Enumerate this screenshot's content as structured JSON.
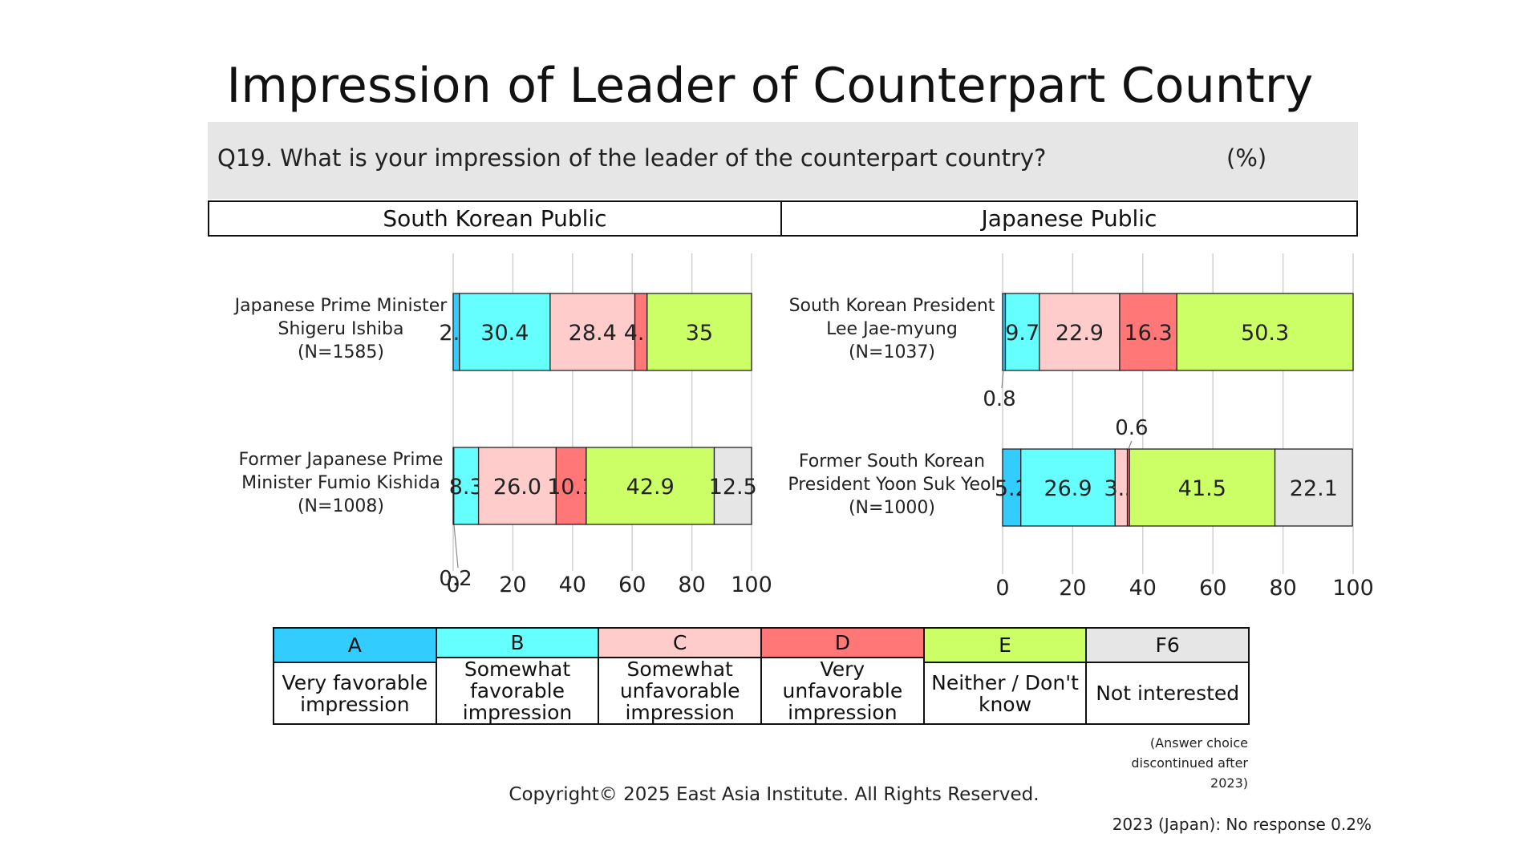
{
  "title": "Impression of Leader of Counterpart Country",
  "question": {
    "text": "Q19. What is your impression of the leader of the counterpart country?",
    "unit": "(%)"
  },
  "publics": {
    "left": "South Korean Public",
    "right": "Japanese Public"
  },
  "colors": {
    "A": "#33ccff",
    "B": "#66ffff",
    "C": "#ffcccc",
    "D": "#ff7777",
    "E": "#ccff66",
    "F6": "#e6e6e6"
  },
  "chart_data": [
    {
      "type": "bar",
      "orientation": "horizontal",
      "stacked": true,
      "panel": "South Korean Public",
      "xlim": [
        0,
        100
      ],
      "xticks": [
        "0",
        "20",
        "40",
        "60",
        "80",
        "100"
      ],
      "grid": true,
      "categories": [
        [
          "Japanese Prime Minister",
          "Shigeru Ishiba",
          "(N=1585)"
        ],
        [
          "Former Japanese Prime",
          "Minister Fumio Kishida",
          "(N=1008)"
        ]
      ],
      "series": [
        {
          "name": "A",
          "values": [
            2.1,
            0.2
          ],
          "labels": [
            "2.1",
            "0.2"
          ]
        },
        {
          "name": "B",
          "values": [
            30.4,
            8.3
          ],
          "labels": [
            "30.4",
            "8.3"
          ]
        },
        {
          "name": "C",
          "values": [
            28.4,
            26.0
          ],
          "labels": [
            "28.4",
            "26.0"
          ]
        },
        {
          "name": "D",
          "values": [
            4.1,
            10.1
          ],
          "labels": [
            "4.1",
            "10.1"
          ]
        },
        {
          "name": "E",
          "values": [
            35,
            42.9
          ],
          "labels": [
            "35",
            "42.9"
          ]
        },
        {
          "name": "F6",
          "values": [
            0,
            12.5
          ],
          "labels": [
            "",
            "12.5"
          ]
        }
      ]
    },
    {
      "type": "bar",
      "orientation": "horizontal",
      "stacked": true,
      "panel": "Japanese Public",
      "xlim": [
        0,
        100
      ],
      "xticks": [
        "0",
        "20",
        "40",
        "60",
        "80",
        "100"
      ],
      "grid": true,
      "categories": [
        [
          "South Korean President",
          "Lee Jae-myung",
          "(N=1037)"
        ],
        [
          "Former South Korean",
          "President Yoon Suk Yeol",
          "(N=1000)"
        ]
      ],
      "series": [
        {
          "name": "A",
          "values": [
            0.8,
            5.2
          ],
          "labels": [
            "0.8",
            "5.2"
          ]
        },
        {
          "name": "B",
          "values": [
            9.7,
            26.9
          ],
          "labels": [
            "9.7",
            "26.9"
          ]
        },
        {
          "name": "C",
          "values": [
            22.9,
            3.5
          ],
          "labels": [
            "22.9",
            "3.5"
          ]
        },
        {
          "name": "D",
          "values": [
            16.3,
            0.6
          ],
          "labels": [
            "16.3",
            "0.6"
          ]
        },
        {
          "name": "E",
          "values": [
            50.3,
            41.5
          ],
          "labels": [
            "50.3",
            "41.5"
          ]
        },
        {
          "name": "F6",
          "values": [
            0,
            22.1
          ],
          "labels": [
            "",
            "22.1"
          ]
        }
      ]
    }
  ],
  "legend": [
    {
      "code": "A",
      "label": "Very favorable impression"
    },
    {
      "code": "B",
      "label": "Somewhat favorable impression"
    },
    {
      "code": "C",
      "label": "Somewhat unfavorable impression"
    },
    {
      "code": "D",
      "label": "Very unfavorable impression"
    },
    {
      "code": "E",
      "label": "Neither / Don't know"
    },
    {
      "code": "F6",
      "label": "Not interested"
    }
  ],
  "notes": {
    "discontinued_line1": "(Answer choice",
    "discontinued_line2": "discontinued after 2023)",
    "copyright": "Copyright© 2025 East Asia Institute. All Rights Reserved.",
    "no_response": "2023 (Japan): No response 0.2%"
  }
}
